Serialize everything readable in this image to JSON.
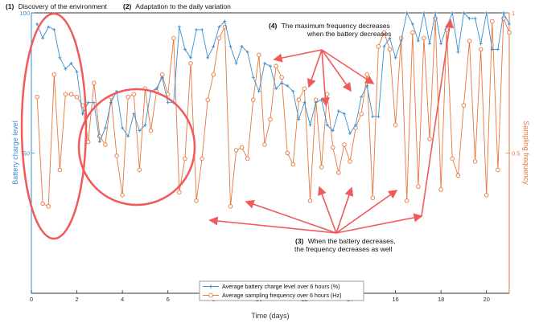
{
  "chart_data": {
    "type": "line",
    "title": "",
    "xlabel": "Time (days)",
    "ylabel_left": "Battery charge level",
    "ylabel_right": "Sampling frequency",
    "xlim": [
      0,
      21
    ],
    "ylim_left": [
      0,
      100
    ],
    "ylim_right": [
      0,
      1
    ],
    "x_ticks": [
      0,
      2,
      4,
      6,
      8,
      10,
      12,
      14,
      16,
      18,
      20
    ],
    "y_ticks_left": [
      50,
      100
    ],
    "y_ticks_right": [
      0.5,
      1
    ],
    "grid": false,
    "legend_position": "bottom-center",
    "colors": {
      "battery": "#3a8fd0",
      "frequency": "#e8763c",
      "annotation": "#f05a5a",
      "axis_left": "#3a8fd0",
      "axis_right": "#e8763c"
    },
    "series": [
      {
        "name": "Average battery charge level over 6 hours (%)",
        "axis": "left",
        "x": [
          0.25,
          0.5,
          0.75,
          1.0,
          1.25,
          1.5,
          1.75,
          2.0,
          2.25,
          2.5,
          2.75,
          3.0,
          3.25,
          3.5,
          3.75,
          4.0,
          4.25,
          4.5,
          4.75,
          5.0,
          5.25,
          5.5,
          5.75,
          6.0,
          6.25,
          6.5,
          6.75,
          7.0,
          7.25,
          7.5,
          7.75,
          8.0,
          8.25,
          8.5,
          8.75,
          9.0,
          9.25,
          9.5,
          9.75,
          10.0,
          10.25,
          10.5,
          10.75,
          11.0,
          11.25,
          11.5,
          11.75,
          12.0,
          12.25,
          12.5,
          12.75,
          13.0,
          13.25,
          13.5,
          13.75,
          14.0,
          14.25,
          14.5,
          14.75,
          15.0,
          15.25,
          15.5,
          15.75,
          16.0,
          16.25,
          16.5,
          16.75,
          17.0,
          17.25,
          17.5,
          17.75,
          18.0,
          18.25,
          18.5,
          18.75,
          19.0,
          19.25,
          19.5,
          19.75,
          20.0,
          20.25,
          20.5,
          20.75,
          21.0
        ],
        "values": [
          96,
          91,
          95,
          94,
          84,
          80,
          82,
          79,
          64,
          68,
          68,
          54,
          59,
          68,
          72,
          59,
          56,
          64,
          58,
          60,
          72,
          73,
          77,
          68,
          68,
          95,
          87,
          84,
          94,
          94,
          84,
          88,
          95,
          97,
          88,
          82,
          88,
          86,
          77,
          72,
          82,
          81,
          73,
          75,
          74,
          72,
          62,
          68,
          60,
          68,
          69,
          60,
          58,
          65,
          64,
          57,
          60,
          70,
          74,
          63,
          63,
          88,
          91,
          84,
          90,
          100,
          96,
          90,
          100,
          89,
          100,
          89,
          95,
          100,
          86,
          100,
          98,
          98,
          89,
          100,
          87,
          87,
          100,
          96
        ]
      },
      {
        "name": "Average sampling frequency over 6 hours (Hz)",
        "axis": "right",
        "x": [
          0.25,
          0.5,
          0.75,
          1.0,
          1.25,
          1.5,
          1.75,
          2.0,
          2.25,
          2.5,
          2.75,
          3.0,
          3.25,
          3.5,
          3.75,
          4.0,
          4.25,
          4.5,
          4.75,
          5.0,
          5.25,
          5.5,
          5.75,
          6.0,
          6.25,
          6.5,
          6.75,
          7.0,
          7.25,
          7.5,
          7.75,
          8.0,
          8.25,
          8.5,
          8.75,
          9.0,
          9.25,
          9.5,
          9.75,
          10.0,
          10.25,
          10.5,
          10.75,
          11.0,
          11.25,
          11.5,
          11.75,
          12.0,
          12.25,
          12.5,
          12.75,
          13.0,
          13.25,
          13.5,
          13.75,
          14.0,
          14.25,
          14.5,
          14.75,
          15.0,
          15.25,
          15.5,
          15.75,
          16.0,
          16.25,
          16.5,
          16.75,
          17.0,
          17.25,
          17.5,
          17.75,
          18.0,
          18.25,
          18.5,
          18.75,
          19.0,
          19.25,
          19.5,
          19.75,
          20.0,
          20.25,
          20.5,
          20.75,
          21.0
        ],
        "values": [
          0.7,
          0.32,
          0.31,
          0.78,
          0.44,
          0.71,
          0.71,
          0.7,
          0.67,
          0.54,
          0.75,
          0.56,
          0.53,
          0.7,
          0.49,
          0.35,
          0.7,
          0.71,
          0.44,
          0.73,
          0.58,
          0.72,
          0.78,
          0.71,
          0.91,
          0.36,
          0.48,
          0.82,
          0.33,
          0.48,
          0.69,
          0.78,
          0.91,
          0.95,
          0.31,
          0.51,
          0.52,
          0.48,
          0.69,
          0.85,
          0.53,
          0.62,
          0.81,
          0.77,
          0.5,
          0.46,
          0.69,
          0.73,
          0.33,
          0.69,
          0.45,
          0.71,
          0.52,
          0.43,
          0.53,
          0.47,
          0.59,
          0.64,
          0.78,
          0.34,
          0.88,
          0.93,
          0.87,
          0.6,
          0.91,
          0.33,
          0.93,
          0.38,
          0.91,
          0.55,
          0.98,
          0.37,
          0.94,
          0.48,
          0.42,
          0.67,
          0.9,
          0.47,
          0.87,
          0.35,
          0.97,
          0.44,
          0.98,
          0.93
        ]
      }
    ],
    "annotations": [
      {
        "number": "(1)",
        "text": "Discovery of the environment"
      },
      {
        "number": "(2)",
        "text": "Adaptation to the daily variation"
      },
      {
        "number": "(4)",
        "lines": [
          "The maximum frequency decreases",
          "when the battery decreases"
        ]
      },
      {
        "number": "(3)",
        "lines": [
          "When the battery decreases,",
          "the frequency decreases as well"
        ]
      }
    ]
  }
}
